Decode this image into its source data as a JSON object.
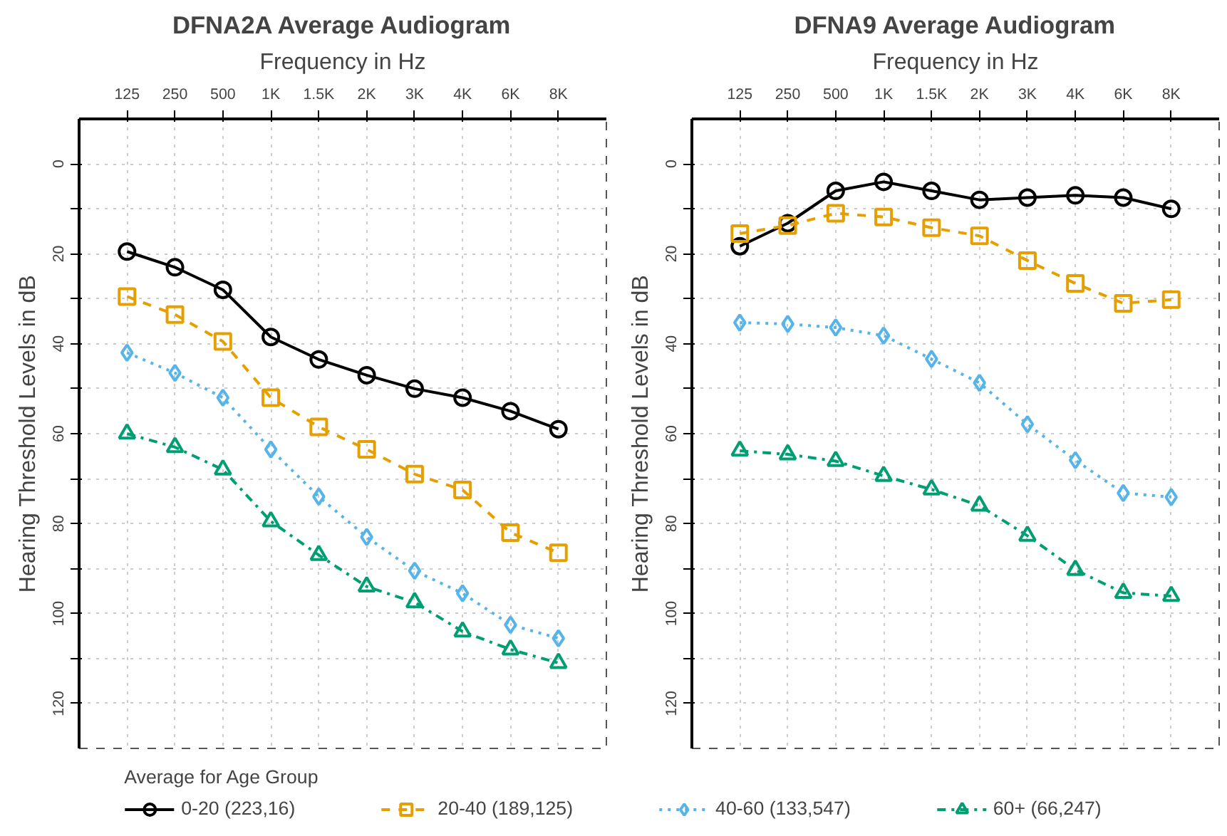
{
  "chart_data": [
    {
      "type": "line",
      "title": "DFNA2A Average Audiogram",
      "xlabel": "Frequency in Hz",
      "ylabel": "Hearing Threshold Levels in dB",
      "legend_title": "Average for Age Group",
      "legend": "bottom",
      "grid": true,
      "categories": [
        "125",
        "250",
        "500",
        "1K",
        "1.5K",
        "2K",
        "3K",
        "4K",
        "6K",
        "8K"
      ],
      "ylim": [
        130,
        -10
      ],
      "yticks": [
        0,
        {
          "value": 10,
          "label": null
        },
        20,
        {
          "value": 30,
          "label": null
        },
        40,
        {
          "value": 50,
          "label": null
        },
        60,
        {
          "value": 70,
          "label": null
        },
        80,
        {
          "value": 90,
          "label": null
        },
        100,
        {
          "value": 110,
          "label": null
        },
        120
      ],
      "series": [
        {
          "name": "0-20 (223,16)",
          "color": "#000000",
          "marker": "circle",
          "line_style": "solid",
          "values": [
            19.5,
            23,
            28,
            38.5,
            43.5,
            47,
            50,
            52,
            55,
            59
          ]
        },
        {
          "name": "20-40 (189,125)",
          "color": "#e69f00",
          "marker": "square",
          "line_style": "dashed",
          "values": [
            29.5,
            33.5,
            39.5,
            52,
            58.5,
            63.5,
            69,
            72.5,
            82,
            86.5
          ]
        },
        {
          "name": "40-60 (133,547)",
          "color": "#56b4e9",
          "marker": "diamond",
          "line_style": "dotted",
          "values": [
            42,
            46.5,
            52,
            63.5,
            74,
            83,
            90.5,
            95.5,
            102.5,
            105.5
          ]
        },
        {
          "name": "60+ (66,247)",
          "color": "#009e73",
          "marker": "triangle",
          "line_style": "dashdot",
          "values": [
            60,
            63,
            68,
            79.5,
            87,
            94,
            97.5,
            104,
            108,
            111
          ]
        }
      ]
    },
    {
      "type": "line",
      "title": "DFNA9 Average Audiogram",
      "xlabel": "Frequency in Hz",
      "ylabel": "Hearing Threshold Levels in dB",
      "grid": true,
      "categories": [
        "125",
        "250",
        "500",
        "1K",
        "1.5K",
        "2K",
        "3K",
        "4K",
        "6K",
        "8K"
      ],
      "ylim": [
        130,
        -10
      ],
      "yticks": [
        0,
        {
          "value": 10,
          "label": null
        },
        20,
        {
          "value": 30,
          "label": null
        },
        40,
        {
          "value": 50,
          "label": null
        },
        60,
        {
          "value": 70,
          "label": null
        },
        80,
        {
          "value": 90,
          "label": null
        },
        100,
        {
          "value": 110,
          "label": null
        },
        120
      ],
      "series": [
        {
          "color": "#000000",
          "marker": "circle",
          "line_style": "solid",
          "values": [
            18.3,
            13.2,
            6,
            4,
            6,
            8,
            7.5,
            7,
            7.5,
            10
          ]
        },
        {
          "color": "#e69f00",
          "marker": "square",
          "line_style": "dashed",
          "values": [
            15.5,
            13.7,
            11,
            11.8,
            14.2,
            16,
            21.5,
            26.6,
            31,
            30.2
          ]
        },
        {
          "color": "#56b4e9",
          "marker": "diamond",
          "line_style": "dotted",
          "values": [
            35.3,
            35.6,
            36.4,
            38.2,
            43.4,
            48.7,
            57.9,
            65.9,
            73.2,
            74.1
          ]
        },
        {
          "color": "#009e73",
          "marker": "triangle",
          "line_style": "dashdot",
          "values": [
            63.8,
            64.6,
            66.1,
            69.4,
            72.4,
            76,
            82.7,
            90.3,
            95.4,
            96.1
          ]
        }
      ]
    }
  ]
}
